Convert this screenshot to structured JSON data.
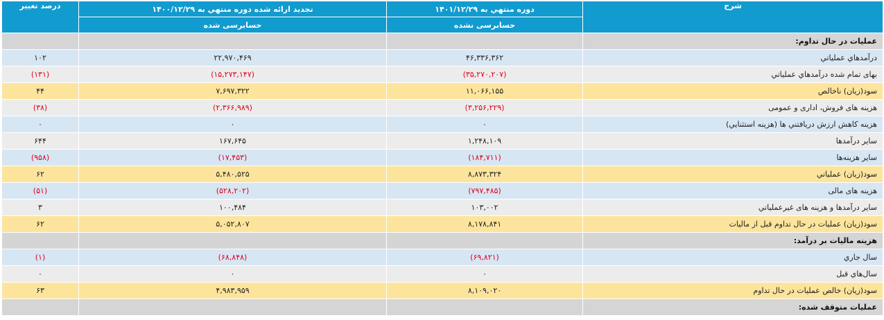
{
  "table": {
    "header": [
      "شرح",
      "دوره منتهي به ۱۴۰۱/۱۲/۲۹",
      "تجدید ارائه شده دوره منتهي به ۱۴۰۰/۱۲/۲۹",
      "درصد تغيير"
    ],
    "subheader": [
      "حسابرسی نشده",
      "حسابرسی شده"
    ],
    "rows": [
      [
        "عمليات در حال تداوم:"
      ],
      [
        "درآمدهاي عملياتي",
        "۴۶,۳۳۶,۳۶۲",
        "۲۲,۹۷۰,۴۶۹",
        "۱۰۲"
      ],
      [
        "بهاى تمام شده درآمدهاي عملياتي",
        "(۳۵,۲۷۰,۲۰۷)",
        "(۱۵,۲۷۳,۱۴۷)",
        "(۱۳۱)"
      ],
      [
        "سود(زيان) ناخالص",
        "۱۱,۰۶۶,۱۵۵",
        "۷,۶۹۷,۳۲۲",
        "۴۴"
      ],
      [
        "هزينه هاى فروش، ادارى و عمومى",
        "(۳,۲۵۶,۲۲۹)",
        "(۲,۳۶۶,۹۸۹)",
        "(۳۸)"
      ],
      [
        "هزينه کاهش ارزش دريافتني ها (هزينه استثنايي)",
        "۰",
        "۰",
        "۰"
      ],
      [
        "ساير درآمدها",
        "۱,۲۴۸,۱۰۹",
        "۱۶۷,۶۴۵",
        "۶۴۴"
      ],
      [
        "سایر هزینه‌ها",
        "(۱۸۴,۷۱۱)",
        "(۱۷,۴۵۳)",
        "(۹۵۸)"
      ],
      [
        "سود(زيان) عملياتي",
        "۸,۸۷۳,۳۲۴",
        "۵,۴۸۰,۵۲۵",
        "۶۲"
      ],
      [
        "هزينه هاى مالى",
        "(۷۹۷,۴۸۵)",
        "(۵۲۸,۲۰۲)",
        "(۵۱)"
      ],
      [
        "ساير درآمدها و هزينه هاى غيرعملياتي",
        "۱۰۳,۰۰۲",
        "۱۰۰,۴۸۴",
        "۳"
      ],
      [
        "سود(زيان) عمليات در حال تداوم قبل از ماليات",
        "۸,۱۷۸,۸۴۱",
        "۵,۰۵۲,۸۰۷",
        "۶۲"
      ],
      [
        "هزينه ماليات بر درآمد:"
      ],
      [
        "سال جاري",
        "(۶۹,۸۲۱)",
        "(۶۸,۸۴۸)",
        "(۱)"
      ],
      [
        "سال‌هاي قبل",
        "۰",
        "۰",
        "۰"
      ],
      [
        "سود(زيان) خالص عمليات در حال تداوم",
        "۸,۱۰۹,۰۲۰",
        "۴,۹۸۳,۹۵۹",
        "۶۳"
      ],
      [
        "عمليات متوقف شده:"
      ]
    ]
  }
}
